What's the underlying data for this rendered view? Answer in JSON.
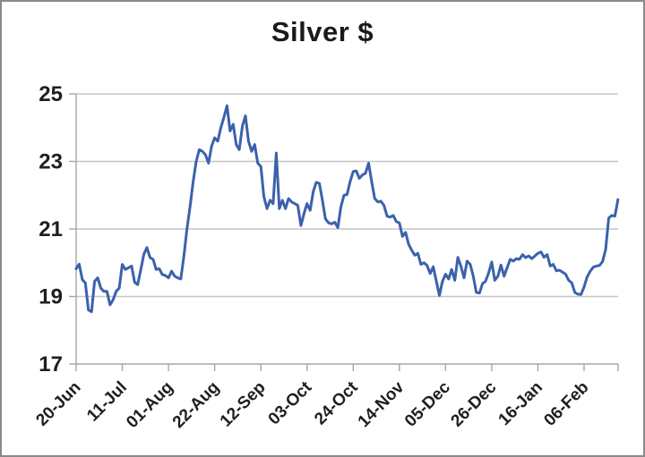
{
  "window": {
    "background_color": "#FFFFFF",
    "frame_border_color": "#8A8A8A"
  },
  "chart_data": {
    "type": "line",
    "title": "Silver $",
    "xlabel": "",
    "ylabel": "",
    "ylim": [
      17,
      25
    ],
    "y_tick_labels": [
      "17",
      "19",
      "21",
      "23",
      "25"
    ],
    "x_tick_labels": [
      "20-Jun",
      "11-Jul",
      "01-Aug",
      "22-Aug",
      "12-Sep",
      "03-Oct",
      "24-Oct",
      "14-Nov",
      "05-Dec",
      "26-Dec",
      "16-Jan",
      "06-Feb"
    ],
    "x_tick_interval_points": 15,
    "grid": "horizontal",
    "legend_position": "none",
    "line_color": "#3A62AC",
    "line_width": 3,
    "axis_color": "#A6A6A6",
    "gridline_color": "#C6C6C6",
    "text_color": "#1F1F1F",
    "series": [
      {
        "name": "Silver $",
        "values": [
          19.82,
          19.96,
          19.5,
          19.4,
          18.6,
          18.55,
          19.45,
          19.55,
          19.25,
          19.15,
          19.15,
          18.75,
          18.9,
          19.15,
          19.25,
          19.95,
          19.8,
          19.85,
          19.9,
          19.42,
          19.35,
          19.8,
          20.25,
          20.45,
          20.15,
          20.1,
          19.8,
          19.82,
          19.65,
          19.62,
          19.55,
          19.75,
          19.6,
          19.55,
          19.52,
          20.2,
          21.0,
          21.65,
          22.4,
          23.0,
          23.35,
          23.3,
          23.2,
          22.95,
          23.45,
          23.7,
          23.6,
          24.0,
          24.3,
          24.65,
          23.9,
          24.1,
          23.5,
          23.35,
          24.05,
          24.35,
          23.6,
          23.3,
          23.5,
          22.95,
          22.85,
          21.95,
          21.6,
          21.85,
          21.75,
          23.25,
          21.6,
          21.85,
          21.6,
          21.9,
          21.8,
          21.75,
          21.7,
          21.1,
          21.45,
          21.75,
          21.55,
          22.1,
          22.38,
          22.35,
          21.85,
          21.3,
          21.18,
          21.15,
          21.2,
          21.04,
          21.65,
          22.0,
          22.02,
          22.4,
          22.7,
          22.72,
          22.5,
          22.6,
          22.65,
          22.95,
          22.4,
          21.9,
          21.8,
          21.82,
          21.7,
          21.38,
          21.35,
          21.4,
          21.22,
          21.18,
          20.78,
          20.9,
          20.55,
          20.37,
          20.22,
          20.28,
          19.95,
          20.0,
          19.92,
          19.68,
          19.88,
          19.45,
          19.03,
          19.45,
          19.66,
          19.52,
          19.8,
          19.48,
          20.16,
          19.9,
          19.55,
          20.05,
          19.95,
          19.6,
          19.12,
          19.1,
          19.38,
          19.45,
          19.7,
          20.02,
          19.48,
          19.6,
          19.93,
          19.6,
          19.85,
          20.1,
          20.05,
          20.12,
          20.1,
          20.24,
          20.15,
          20.2,
          20.12,
          20.2,
          20.28,
          20.32,
          20.16,
          20.24,
          19.9,
          19.95,
          19.76,
          19.78,
          19.72,
          19.66,
          19.48,
          19.4,
          19.12,
          19.07,
          19.06,
          19.28,
          19.58,
          19.75,
          19.87,
          19.9,
          19.92,
          20.03,
          20.4,
          21.32,
          21.4,
          21.38,
          21.87
        ]
      }
    ]
  }
}
